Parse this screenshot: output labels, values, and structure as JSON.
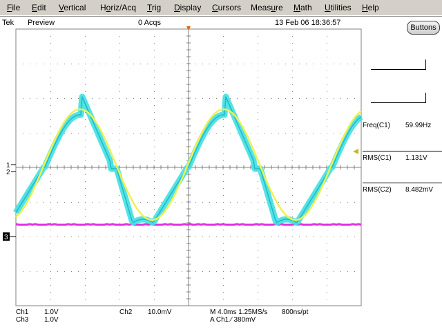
{
  "menu": [
    {
      "pre": "",
      "ul": "F",
      "post": "ile"
    },
    {
      "pre": "",
      "ul": "E",
      "post": "dit"
    },
    {
      "pre": "",
      "ul": "V",
      "post": "ertical"
    },
    {
      "pre": "H",
      "ul": "o",
      "post": "riz/Acq"
    },
    {
      "pre": "",
      "ul": "T",
      "post": "rig"
    },
    {
      "pre": "",
      "ul": "D",
      "post": "isplay"
    },
    {
      "pre": "",
      "ul": "C",
      "post": "ursors"
    },
    {
      "pre": "Meas",
      "ul": "u",
      "post": "re"
    },
    {
      "pre": "",
      "ul": "M",
      "post": "ath"
    },
    {
      "pre": "",
      "ul": "U",
      "post": "tilities"
    },
    {
      "pre": "",
      "ul": "H",
      "post": "elp"
    }
  ],
  "status": {
    "brand": "Tek",
    "mode": "Preview",
    "acqs": "0 Acqs",
    "datetime": "13 Feb 06 18:36:57"
  },
  "buttons_label": "Buttons",
  "measurements": [
    {
      "label": "Freq(C1)",
      "value": "59.99Hz"
    },
    {
      "label": "RMS(C1)",
      "value": "1.131V"
    },
    {
      "label": "RMS(C2)",
      "value": "8.482mV"
    }
  ],
  "markers": {
    "ch1": "1",
    "ch2": "2",
    "ch3": "3"
  },
  "channels": {
    "ch1_label": "Ch1",
    "ch1_scale": "1.0V",
    "ch2_label": "Ch2",
    "ch2_scale": "10.0mV",
    "ch3_label": "Ch3",
    "ch3_scale": "1.0V"
  },
  "horizontal": {
    "timebase": "M 4.0ms 1.25MS/s",
    "resolution": "800ns/pt",
    "trigger": "A  Ch1  ∕  380mV"
  },
  "colors": {
    "ch1": "#f0f050",
    "ch2": "#40e0e0",
    "ch3": "#e030e0",
    "grid": "#808080",
    "menubar": "#d4d0c8",
    "trigger_marker": "#e06010"
  }
}
